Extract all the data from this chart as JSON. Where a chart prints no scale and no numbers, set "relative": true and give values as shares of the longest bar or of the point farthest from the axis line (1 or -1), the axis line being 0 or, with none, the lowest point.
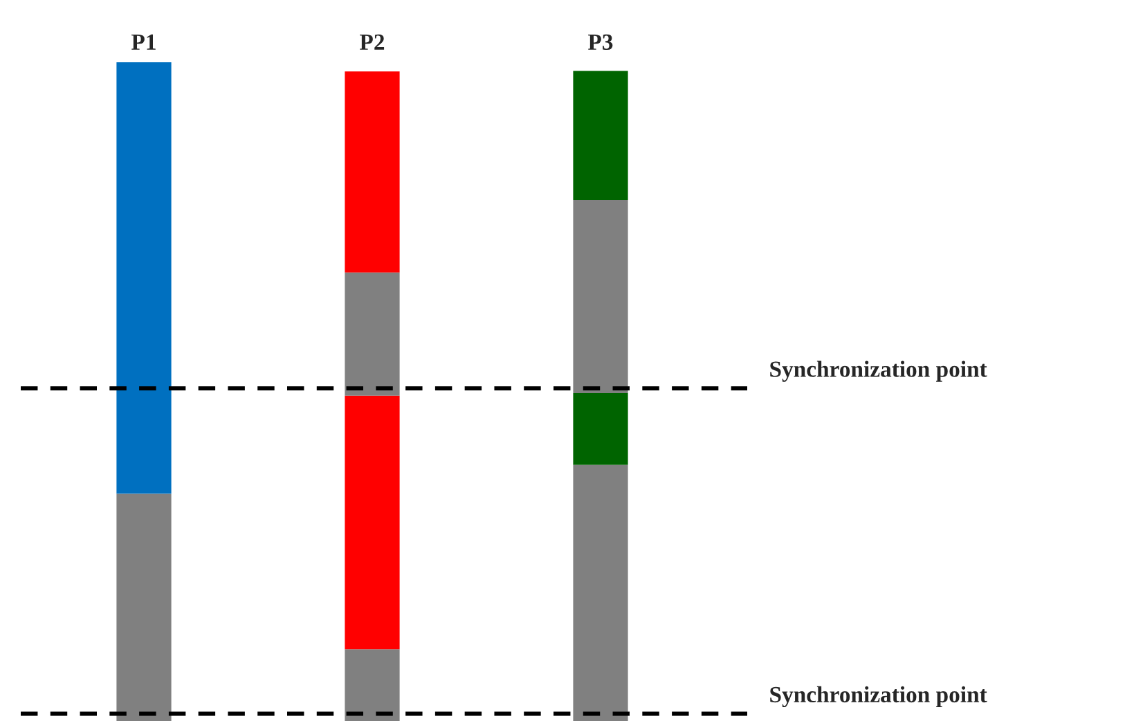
{
  "chart_data": {
    "type": "bar",
    "stacked": true,
    "relative": true,
    "legend": false,
    "grid": false,
    "categories": [
      "P1",
      "P2",
      "P3"
    ],
    "series": [
      {
        "color": "#808080",
        "values": [
          0.345,
          0.109,
          0.389
        ]
      },
      {
        "colors": [
          "#0070c0",
          "#ff0000",
          "#006400"
        ],
        "values": [
          0.655,
          0.385,
          0.109
        ]
      },
      {
        "color": "#808080",
        "values": [
          null,
          0.187,
          0.293
        ]
      },
      {
        "colors": [
          null,
          "#ff0000",
          "#006400"
        ],
        "values": [
          null,
          0.305,
          0.196
        ]
      }
    ],
    "ref_lines": [
      {
        "axis": "y",
        "value": 0.505,
        "label": "Synchronization point",
        "color": "#000000",
        "line_style": "dashed"
      },
      {
        "axis": "y",
        "value": 0.011,
        "label": "Synchronization point",
        "color": "#000000",
        "line_style": "dashed"
      }
    ]
  }
}
